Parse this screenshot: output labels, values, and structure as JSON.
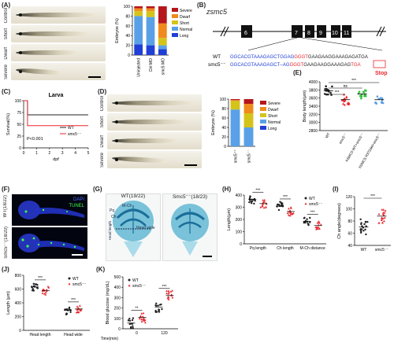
{
  "panels": {
    "A": "(A)",
    "B": "(B)",
    "C": "(C)",
    "D": "(D)",
    "E": "(E)",
    "F": "(F)",
    "G": "(G)",
    "H": "(H)",
    "I": "(I)",
    "J": "(J)",
    "K": "(K)"
  },
  "phenotype_labels": {
    "control": "Control",
    "short": "Short",
    "dwarf": "Dwarf",
    "severe": "Severe"
  },
  "gene": {
    "title": "zsmc5",
    "exons": [
      "6",
      "7",
      "8",
      "9",
      "10",
      "11"
    ],
    "wt_label": "WT",
    "mut_label": "smc5⁻⁻",
    "wt_seq_blue": "GGCACGTAAAGAGCTGGAG",
    "wt_seq_red": "GGGT",
    "wt_seq_black": "GAAGAAGGAAAGAG",
    "wt_seq_end": "ATGA",
    "mut_seq_blue": "GGCACGTAAAGAGCT--AG",
    "mut_seq_red": "GGGT",
    "mut_seq_black": "GAAGAAGGAAAGAG",
    "mut_seq_end": "TGA",
    "stop_label": "Stop"
  },
  "F": {
    "wt": "WT(18/22)",
    "mut": "Smc5⁻⁻(18/20)",
    "dapi": "DAPI",
    "tunel": "TUNEL"
  },
  "G": {
    "wt": "WT(19/22)",
    "mut": "Smc5⁻⁻(18/23)",
    "head_wide": "Head wide",
    "head_length": "Head length",
    "pq": "Pq",
    "ch": "Ch",
    "mch": "M-Ch"
  },
  "colors": {
    "wt": "#222222",
    "mut": "#e8262d",
    "green": "#2fbf3a",
    "blue_seq": "#1f3fd6",
    "red_seq": "#e8262d",
    "severe": "#b5161b",
    "dwarf": "#f08a1c",
    "short": "#d4c41a",
    "normal": "#5aa0e6",
    "long": "#1f3fd6"
  },
  "chart_data": [
    {
      "id": "A",
      "type": "bar",
      "stacked": true,
      "categories": [
        "Uninjected",
        "Ctrl MO",
        "smc5 MO"
      ],
      "ylabel": "Embryos (%)",
      "ylim": [
        0,
        100
      ],
      "yticks": [
        0,
        20,
        40,
        60,
        80,
        100
      ],
      "series": [
        {
          "name": "Long",
          "values": [
            22,
            20,
            12
          ]
        },
        {
          "name": "Normal",
          "values": [
            58,
            58,
            8
          ]
        },
        {
          "name": "Short",
          "values": [
            10,
            12,
            15
          ]
        },
        {
          "name": "Dwarf",
          "values": [
            6,
            6,
            30
          ]
        },
        {
          "name": "Severe",
          "values": [
            4,
            4,
            35
          ]
        }
      ],
      "legend": [
        "Severe",
        "Dwarf",
        "Short",
        "Normal",
        "Long"
      ]
    },
    {
      "id": "C",
      "type": "line",
      "title": "Larva",
      "xlabel": "dpf",
      "ylabel": "Survival(%)",
      "xlim": [
        0,
        5
      ],
      "ylim": [
        0,
        100
      ],
      "xticks": [
        0,
        1,
        2,
        3,
        4,
        5
      ],
      "yticks": [
        0,
        25,
        50,
        75,
        100
      ],
      "series": [
        {
          "name": "WT",
          "x": [
            0,
            0.3,
            0.3,
            5
          ],
          "y": [
            100,
            100,
            70,
            70
          ]
        },
        {
          "name": "smc5⁻⁻",
          "x": [
            0,
            0.3,
            0.3,
            5
          ],
          "y": [
            100,
            100,
            47,
            47
          ]
        }
      ],
      "annotation": "P<0.001",
      "legend": [
        "WT",
        "smc5⁻⁻"
      ]
    },
    {
      "id": "D",
      "type": "bar",
      "stacked": true,
      "categories": [
        "smc5⁺⁺",
        "smc5⁻⁻"
      ],
      "ylabel": "Embryos (%)",
      "ylim": [
        0,
        100
      ],
      "yticks": [
        0,
        20,
        40,
        60,
        80,
        100
      ],
      "series": [
        {
          "name": "Long",
          "values": [
            0,
            0
          ]
        },
        {
          "name": "Normal",
          "values": [
            78,
            40
          ]
        },
        {
          "name": "Short",
          "values": [
            18,
            30
          ]
        },
        {
          "name": "Dwarf",
          "values": [
            2,
            20
          ]
        },
        {
          "name": "Severe",
          "values": [
            2,
            10
          ]
        }
      ],
      "legend": [
        "Severe",
        "Dwarf",
        "Short",
        "Normal",
        "Long"
      ]
    },
    {
      "id": "E",
      "type": "scatter",
      "ylabel": "Body length(μm)",
      "ylim": [
        2800,
        4000
      ],
      "yticks": [
        2800,
        3000,
        3200,
        3400,
        3600,
        3800,
        4000
      ],
      "categories": [
        "WT",
        "smc5⁻⁻",
        "hSMC5 WT+smc5⁻⁻",
        "hSMC5 R372del+smc5⁻⁻"
      ],
      "means": [
        3780,
        3560,
        3700,
        3560
      ],
      "spread": [
        120,
        140,
        110,
        100
      ],
      "counts": [
        16,
        16,
        14,
        12
      ],
      "significance": [
        "***",
        "ns",
        "***"
      ]
    },
    {
      "id": "H",
      "type": "scatter",
      "ylabel": "Length(μm)",
      "ylim": [
        0,
        400
      ],
      "yticks": [
        0,
        100,
        200,
        300,
        400
      ],
      "categories": [
        "Pq length",
        "Ch length",
        "M-Ch distance"
      ],
      "series": [
        {
          "name": "WT",
          "means": [
            365,
            310,
            185
          ]
        },
        {
          "name": "smc5⁻⁻",
          "means": [
            330,
            265,
            150
          ]
        }
      ],
      "significance": [
        "***",
        "***",
        "***"
      ]
    },
    {
      "id": "I",
      "type": "scatter",
      "ylabel": "Ch angle(degrees)",
      "ylim": [
        40,
        120
      ],
      "yticks": [
        40,
        60,
        80,
        100,
        120
      ],
      "categories": [
        "WT",
        "smc5⁻⁻"
      ],
      "means": [
        70,
        88
      ],
      "significance": [
        "***"
      ]
    },
    {
      "id": "J",
      "type": "scatter",
      "ylabel": "Length (μm)",
      "ylim": [
        0,
        800
      ],
      "yticks": [
        0,
        200,
        400,
        600,
        800
      ],
      "categories": [
        "Head length",
        "Head wide"
      ],
      "series": [
        {
          "name": "WT",
          "means": [
            630,
            290
          ]
        },
        {
          "name": "smc5⁻⁻",
          "means": [
            580,
            310
          ]
        }
      ],
      "significance": [
        "***",
        "***"
      ]
    },
    {
      "id": "K",
      "type": "scatter",
      "ylabel": "Blood glucose (mg/dL)",
      "xlabel": "Time(min)",
      "ylim": [
        0,
        500
      ],
      "yticks": [
        0,
        100,
        200,
        300,
        400,
        500
      ],
      "categories": [
        "0",
        "120"
      ],
      "series": [
        {
          "name": "WT",
          "means": [
            55,
            210
          ]
        },
        {
          "name": "smc5⁻⁻",
          "means": [
            110,
            320
          ]
        }
      ],
      "significance": [
        "**",
        "***"
      ]
    }
  ]
}
